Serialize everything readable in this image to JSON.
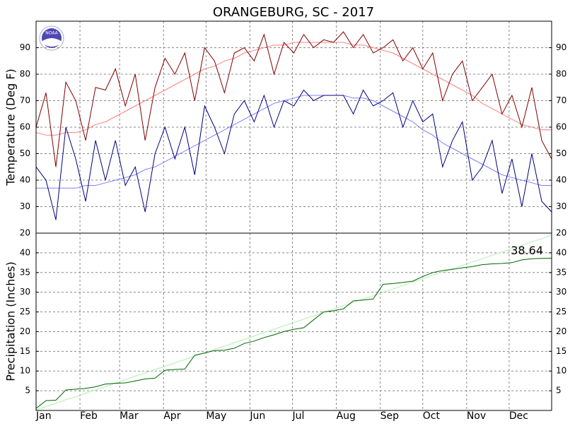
{
  "chart_data": [
    {
      "type": "line",
      "title": "ORANGEBURG, SC - 2017",
      "logo_text": "NOAA",
      "ylabel": "Temperature (Deg F)",
      "x": [
        1,
        8,
        15,
        22,
        29,
        36,
        43,
        50,
        57,
        64,
        71,
        78,
        85,
        92,
        99,
        106,
        113,
        120,
        127,
        134,
        141,
        148,
        155,
        162,
        169,
        176,
        183,
        190,
        197,
        204,
        211,
        218,
        225,
        232,
        239,
        246,
        253,
        260,
        267,
        274,
        281,
        288,
        295,
        302,
        309,
        316,
        323,
        330,
        337,
        344,
        351,
        358,
        365
      ],
      "xlim": [
        1,
        365
      ],
      "ylim": [
        20,
        100
      ],
      "yticks": [
        20,
        30,
        40,
        50,
        60,
        70,
        80,
        90
      ],
      "grid": true,
      "series": [
        {
          "color": "#ff8080",
          "values": [
            58,
            57,
            57,
            58,
            58,
            59,
            61,
            62,
            64,
            66,
            68,
            70,
            72,
            74,
            76,
            78,
            80,
            82,
            83,
            85,
            86,
            88,
            89,
            90,
            91,
            91,
            92,
            92,
            92,
            92,
            92,
            92,
            91,
            91,
            90,
            89,
            88,
            86,
            84,
            82,
            80,
            78,
            76,
            74,
            72,
            69,
            67,
            65,
            63,
            61,
            60,
            59,
            59
          ]
        },
        {
          "color": "#8080ff",
          "values": [
            37,
            37,
            37,
            37,
            37,
            38,
            38,
            39,
            40,
            41,
            42,
            44,
            45,
            47,
            49,
            51,
            53,
            55,
            57,
            59,
            61,
            63,
            65,
            67,
            69,
            70,
            71,
            72,
            72,
            72,
            72,
            72,
            71,
            71,
            70,
            68,
            66,
            64,
            62,
            59,
            57,
            54,
            52,
            50,
            48,
            46,
            44,
            42,
            41,
            40,
            39,
            38,
            38
          ]
        },
        {
          "color": "#800000",
          "values": [
            60,
            73,
            45,
            77,
            70,
            55,
            75,
            74,
            82,
            68,
            80,
            55,
            75,
            86,
            80,
            88,
            70,
            90,
            85,
            73,
            88,
            90,
            85,
            95,
            80,
            92,
            88,
            95,
            90,
            93,
            92,
            96,
            90,
            95,
            88,
            90,
            93,
            85,
            90,
            82,
            88,
            70,
            80,
            85,
            70,
            75,
            80,
            65,
            72,
            60,
            75,
            55,
            48
          ]
        },
        {
          "color": "#000080",
          "values": [
            45,
            40,
            25,
            60,
            48,
            32,
            55,
            40,
            55,
            38,
            45,
            28,
            50,
            60,
            48,
            60,
            42,
            68,
            60,
            50,
            65,
            70,
            62,
            72,
            60,
            70,
            68,
            74,
            70,
            72,
            72,
            72,
            65,
            74,
            68,
            70,
            73,
            60,
            70,
            62,
            65,
            45,
            55,
            62,
            40,
            45,
            55,
            35,
            48,
            30,
            50,
            32,
            28
          ]
        }
      ]
    },
    {
      "type": "line",
      "ylabel": "Precipitation (Inches)",
      "annotation": "38.64",
      "x": [
        1,
        8,
        15,
        22,
        29,
        36,
        43,
        50,
        57,
        64,
        71,
        78,
        85,
        92,
        99,
        106,
        113,
        120,
        127,
        134,
        141,
        148,
        155,
        162,
        169,
        176,
        183,
        190,
        197,
        204,
        211,
        218,
        225,
        232,
        239,
        246,
        253,
        260,
        267,
        274,
        281,
        288,
        295,
        302,
        309,
        316,
        323,
        330,
        337,
        344,
        351,
        358,
        365
      ],
      "xlim": [
        1,
        365
      ],
      "xticks": [
        {
          "value": 1,
          "label": "Jan"
        },
        {
          "value": 32,
          "label": "Feb"
        },
        {
          "value": 60,
          "label": "Mar"
        },
        {
          "value": 91,
          "label": "Apr"
        },
        {
          "value": 121,
          "label": "May"
        },
        {
          "value": 152,
          "label": "Jun"
        },
        {
          "value": 182,
          "label": "Jul"
        },
        {
          "value": 213,
          "label": "Aug"
        },
        {
          "value": 244,
          "label": "Sep"
        },
        {
          "value": 274,
          "label": "Oct"
        },
        {
          "value": 305,
          "label": "Nov"
        },
        {
          "value": 335,
          "label": "Dec"
        }
      ],
      "ylim": [
        0,
        45
      ],
      "yticks": [
        5,
        10,
        15,
        20,
        25,
        30,
        35,
        40
      ],
      "grid": true,
      "series": [
        {
          "color": "#b0f0b0",
          "values": [
            0.1,
            1.0,
            1.8,
            2.7,
            3.5,
            4.4,
            5.2,
            6.1,
            6.9,
            7.8,
            8.7,
            9.5,
            10.4,
            11.2,
            12.1,
            12.9,
            13.8,
            14.6,
            15.5,
            16.3,
            17.2,
            18.0,
            18.9,
            19.8,
            20.6,
            21.5,
            22.3,
            23.2,
            24.0,
            24.9,
            25.7,
            26.6,
            27.4,
            28.3,
            29.1,
            30.0,
            30.8,
            31.7,
            32.6,
            33.4,
            34.3,
            35.1,
            36.0,
            36.8,
            37.7,
            38.5,
            39.4,
            40.2,
            41.1,
            41.9,
            42.8,
            43.6,
            44.5
          ]
        },
        {
          "color": "#006400",
          "values": [
            0.5,
            2.5,
            2.6,
            5.2,
            5.4,
            5.6,
            6.0,
            6.7,
            6.9,
            7.0,
            7.5,
            8.0,
            8.2,
            10.2,
            10.4,
            10.5,
            14.0,
            14.6,
            15.2,
            15.3,
            15.8,
            17.0,
            17.6,
            18.5,
            19.2,
            20.0,
            20.6,
            21.0,
            23.0,
            25.0,
            25.3,
            25.8,
            27.8,
            28.0,
            28.3,
            32.0,
            32.2,
            32.5,
            32.8,
            34.0,
            35.0,
            35.5,
            35.8,
            36.2,
            36.5,
            37.0,
            37.2,
            37.3,
            37.5,
            38.2,
            38.5,
            38.6,
            38.64
          ]
        }
      ]
    }
  ]
}
